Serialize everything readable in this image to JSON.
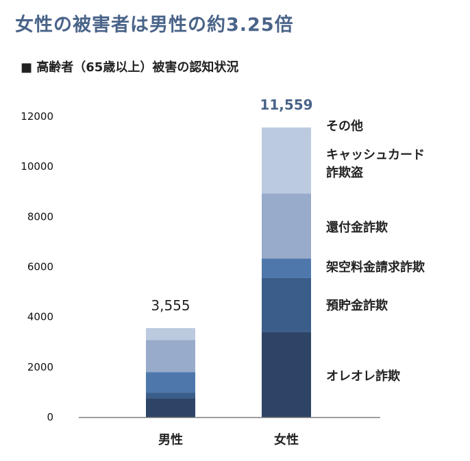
{
  "chart_data": {
    "type": "bar",
    "stacked": true,
    "title": "女性の被害者は男性の約3.25倍",
    "subtitle": "■ 高齢者（65歳以上）被害の認知状況",
    "categories": [
      "男性",
      "女性"
    ],
    "totals": [
      "3,555",
      "11,559"
    ],
    "ylim": [
      0,
      12000
    ],
    "yticks": [
      0,
      2000,
      4000,
      6000,
      8000,
      10000,
      12000
    ],
    "grid": false,
    "series": [
      {
        "name": "オレオレ詐欺",
        "values": [
          750,
          3400
        ],
        "color": "#2d4466"
      },
      {
        "name": "預貯金詐欺",
        "values": [
          220,
          2150
        ],
        "color": "#3b5d8a"
      },
      {
        "name": "架空料金請求詐欺",
        "values": [
          830,
          780
        ],
        "color": "#4e78ac"
      },
      {
        "name": "還付金詐欺",
        "values": [
          1280,
          2600
        ],
        "color": "#98abcb"
      },
      {
        "name": "キャッシュカード詐欺盗",
        "values": [
          475,
          2629
        ],
        "color": "#bccadf"
      },
      {
        "name": "その他",
        "values": [
          0,
          0
        ],
        "color": "#d6dfec"
      }
    ],
    "labels": [
      {
        "lines": [
          "その他"
        ]
      },
      {
        "lines": [
          "キャッシュカード",
          "詐欺盗"
        ]
      },
      {
        "lines": [
          "還付金詐欺"
        ]
      },
      {
        "lines": [
          "架空料金請求詐欺"
        ]
      },
      {
        "lines": [
          "預貯金詐欺"
        ]
      },
      {
        "lines": [
          "オレオレ詐欺"
        ]
      }
    ],
    "colors": {
      "title": "#4a6489",
      "total_female": "#4a6489",
      "total_male": "#222222",
      "axis": "#7a7a7a"
    }
  }
}
